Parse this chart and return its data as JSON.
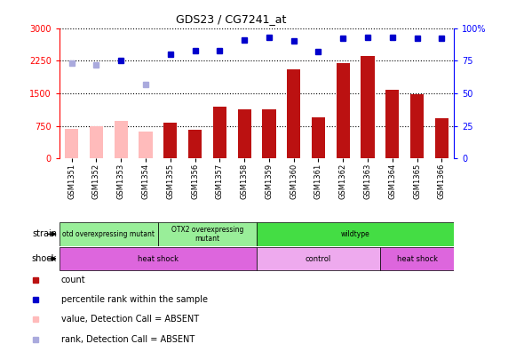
{
  "title": "GDS23 / CG7241_at",
  "samples": [
    "GSM1351",
    "GSM1352",
    "GSM1353",
    "GSM1354",
    "GSM1355",
    "GSM1356",
    "GSM1357",
    "GSM1358",
    "GSM1359",
    "GSM1360",
    "GSM1361",
    "GSM1362",
    "GSM1363",
    "GSM1364",
    "GSM1365",
    "GSM1366"
  ],
  "count_values": [
    680,
    740,
    860,
    620,
    820,
    650,
    1200,
    1130,
    1130,
    2050,
    940,
    2200,
    2350,
    1580,
    1480,
    930
  ],
  "count_absent": [
    true,
    true,
    true,
    true,
    false,
    false,
    false,
    false,
    false,
    false,
    false,
    false,
    false,
    false,
    false,
    false
  ],
  "rank_values": [
    73,
    72,
    75,
    57,
    80,
    83,
    83,
    91,
    93,
    90,
    82,
    92,
    93,
    93,
    92,
    92
  ],
  "rank_absent": [
    true,
    true,
    false,
    true,
    false,
    false,
    false,
    false,
    false,
    false,
    false,
    false,
    false,
    false,
    false,
    false
  ],
  "ylim_left": [
    0,
    3000
  ],
  "ylim_right": [
    0,
    100
  ],
  "yticks_left": [
    0,
    750,
    1500,
    2250,
    3000
  ],
  "yticks_right": [
    0,
    25,
    50,
    75,
    100
  ],
  "strain_groups": [
    {
      "label": "otd overexpressing mutant",
      "start": 0,
      "end": 4,
      "color": "#99EE99"
    },
    {
      "label": "OTX2 overexpressing\nmutant",
      "start": 4,
      "end": 8,
      "color": "#99EE99"
    },
    {
      "label": "wildtype",
      "start": 8,
      "end": 16,
      "color": "#44DD44"
    }
  ],
  "shock_groups": [
    {
      "label": "heat shock",
      "start": 0,
      "end": 8,
      "color": "#DD66DD"
    },
    {
      "label": "control",
      "start": 8,
      "end": 13,
      "color": "#EEAAEE"
    },
    {
      "label": "heat shock",
      "start": 13,
      "end": 16,
      "color": "#DD66DD"
    }
  ],
  "bar_color_present": "#BB1111",
  "bar_color_absent": "#FFBBBB",
  "dot_color_present": "#0000CC",
  "dot_color_absent": "#AAAADD",
  "dot_size": 5,
  "background_color": "#ffffff"
}
